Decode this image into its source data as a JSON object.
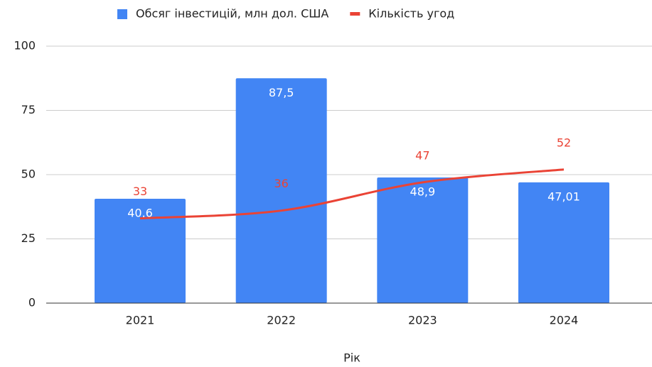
{
  "chart_data": {
    "type": "bar_line",
    "xlabel": "Рік",
    "categories": [
      "2021",
      "2022",
      "2023",
      "2024"
    ],
    "series": [
      {
        "name": "Обсяг інвестицій, млн дол. США",
        "type": "bar",
        "color": "#4285f4",
        "values": [
          40.6,
          87.5,
          48.9,
          47.01
        ],
        "value_labels": [
          "40,6",
          "87,5",
          "48,9",
          "47,01"
        ]
      },
      {
        "name": "Кількість угод",
        "type": "line",
        "color": "#ea4335",
        "values": [
          33,
          36,
          47,
          52
        ]
      }
    ],
    "ylim": [
      0,
      100
    ],
    "yticks": [
      0,
      25,
      50,
      75,
      100
    ],
    "grid": true,
    "legend": "top"
  }
}
